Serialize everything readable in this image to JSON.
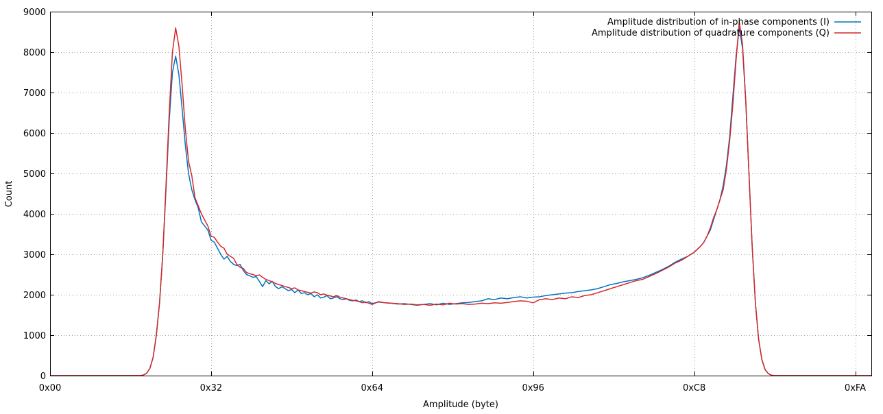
{
  "chart_data": {
    "type": "line",
    "title": "",
    "xlabel": "Amplitude (byte)",
    "ylabel": "Count",
    "xlim": [
      0,
      255
    ],
    "ylim": [
      0,
      9000
    ],
    "x_ticks": [
      {
        "value": 0,
        "label": "0x00"
      },
      {
        "value": 50,
        "label": "0x32"
      },
      {
        "value": 100,
        "label": "0x64"
      },
      {
        "value": 150,
        "label": "0x96"
      },
      {
        "value": 200,
        "label": "0xC8"
      },
      {
        "value": 250,
        "label": "0xFA"
      }
    ],
    "y_ticks": [
      0,
      1000,
      2000,
      3000,
      4000,
      5000,
      6000,
      7000,
      8000,
      9000
    ],
    "grid": true,
    "legend_position": "top-right",
    "series": [
      {
        "name": "Amplitude distribution of in-phase components (I)",
        "color": "#0072bd",
        "points": [
          [
            0,
            0
          ],
          [
            10,
            0
          ],
          [
            20,
            0
          ],
          [
            28,
            0
          ],
          [
            29,
            15
          ],
          [
            30,
            60
          ],
          [
            31,
            180
          ],
          [
            32,
            450
          ],
          [
            33,
            1000
          ],
          [
            34,
            1800
          ],
          [
            35,
            3000
          ],
          [
            36,
            4600
          ],
          [
            37,
            6300
          ],
          [
            38,
            7500
          ],
          [
            39,
            7900
          ],
          [
            40,
            7450
          ],
          [
            41,
            6600
          ],
          [
            42,
            5700
          ],
          [
            43,
            5000
          ],
          [
            44,
            4600
          ],
          [
            45,
            4350
          ],
          [
            46,
            4150
          ],
          [
            47,
            3800
          ],
          [
            48,
            3700
          ],
          [
            49,
            3600
          ],
          [
            50,
            3350
          ],
          [
            51,
            3300
          ],
          [
            52,
            3150
          ],
          [
            53,
            3000
          ],
          [
            54,
            2880
          ],
          [
            55,
            2950
          ],
          [
            56,
            2820
          ],
          [
            57,
            2750
          ],
          [
            58,
            2720
          ],
          [
            59,
            2750
          ],
          [
            60,
            2600
          ],
          [
            61,
            2500
          ],
          [
            62,
            2470
          ],
          [
            63,
            2430
          ],
          [
            64,
            2450
          ],
          [
            65,
            2330
          ],
          [
            66,
            2200
          ],
          [
            67,
            2350
          ],
          [
            68,
            2270
          ],
          [
            69,
            2330
          ],
          [
            70,
            2200
          ],
          [
            71,
            2150
          ],
          [
            72,
            2200
          ],
          [
            73,
            2150
          ],
          [
            74,
            2100
          ],
          [
            75,
            2130
          ],
          [
            76,
            2050
          ],
          [
            77,
            2120
          ],
          [
            78,
            2030
          ],
          [
            79,
            2050
          ],
          [
            80,
            2000
          ],
          [
            81,
            2030
          ],
          [
            82,
            1950
          ],
          [
            83,
            2000
          ],
          [
            84,
            1920
          ],
          [
            85,
            1940
          ],
          [
            86,
            1980
          ],
          [
            87,
            1900
          ],
          [
            88,
            1920
          ],
          [
            89,
            1950
          ],
          [
            90,
            1900
          ],
          [
            91,
            1880
          ],
          [
            92,
            1900
          ],
          [
            93,
            1860
          ],
          [
            94,
            1850
          ],
          [
            95,
            1870
          ],
          [
            96,
            1830
          ],
          [
            97,
            1850
          ],
          [
            98,
            1800
          ],
          [
            99,
            1830
          ],
          [
            100,
            1780
          ],
          [
            102,
            1820
          ],
          [
            104,
            1800
          ],
          [
            106,
            1790
          ],
          [
            108,
            1770
          ],
          [
            110,
            1780
          ],
          [
            112,
            1760
          ],
          [
            114,
            1740
          ],
          [
            116,
            1760
          ],
          [
            118,
            1780
          ],
          [
            120,
            1750
          ],
          [
            122,
            1790
          ],
          [
            124,
            1760
          ],
          [
            126,
            1780
          ],
          [
            128,
            1800
          ],
          [
            130,
            1810
          ],
          [
            132,
            1830
          ],
          [
            134,
            1850
          ],
          [
            136,
            1900
          ],
          [
            138,
            1880
          ],
          [
            140,
            1920
          ],
          [
            142,
            1900
          ],
          [
            144,
            1930
          ],
          [
            146,
            1950
          ],
          [
            148,
            1920
          ],
          [
            150,
            1940
          ],
          [
            152,
            1950
          ],
          [
            154,
            1980
          ],
          [
            156,
            2000
          ],
          [
            158,
            2020
          ],
          [
            160,
            2040
          ],
          [
            162,
            2050
          ],
          [
            164,
            2080
          ],
          [
            166,
            2100
          ],
          [
            168,
            2120
          ],
          [
            170,
            2150
          ],
          [
            172,
            2200
          ],
          [
            174,
            2250
          ],
          [
            176,
            2280
          ],
          [
            178,
            2320
          ],
          [
            180,
            2350
          ],
          [
            182,
            2380
          ],
          [
            184,
            2420
          ],
          [
            186,
            2480
          ],
          [
            188,
            2550
          ],
          [
            190,
            2620
          ],
          [
            192,
            2700
          ],
          [
            194,
            2800
          ],
          [
            196,
            2880
          ],
          [
            198,
            2950
          ],
          [
            200,
            3050
          ],
          [
            202,
            3200
          ],
          [
            203,
            3300
          ],
          [
            204,
            3450
          ],
          [
            205,
            3600
          ],
          [
            206,
            3850
          ],
          [
            207,
            4100
          ],
          [
            208,
            4350
          ],
          [
            209,
            4700
          ],
          [
            210,
            5200
          ],
          [
            211,
            5900
          ],
          [
            212,
            6900
          ],
          [
            213,
            7900
          ],
          [
            214,
            8600
          ],
          [
            215,
            8100
          ],
          [
            216,
            6800
          ],
          [
            217,
            5000
          ],
          [
            218,
            3200
          ],
          [
            219,
            1800
          ],
          [
            220,
            900
          ],
          [
            221,
            400
          ],
          [
            222,
            150
          ],
          [
            223,
            50
          ],
          [
            224,
            10
          ],
          [
            225,
            0
          ],
          [
            240,
            0
          ],
          [
            255,
            0
          ]
        ]
      },
      {
        "name": "Amplitude distribution of quadrature components (Q)",
        "color": "#d62728",
        "points": [
          [
            0,
            0
          ],
          [
            10,
            0
          ],
          [
            20,
            0
          ],
          [
            28,
            0
          ],
          [
            29,
            15
          ],
          [
            30,
            60
          ],
          [
            31,
            180
          ],
          [
            32,
            450
          ],
          [
            33,
            1000
          ],
          [
            34,
            1800
          ],
          [
            35,
            3000
          ],
          [
            36,
            4700
          ],
          [
            37,
            6500
          ],
          [
            38,
            8000
          ],
          [
            39,
            8600
          ],
          [
            40,
            8150
          ],
          [
            41,
            7200
          ],
          [
            42,
            6100
          ],
          [
            43,
            5300
          ],
          [
            44,
            4950
          ],
          [
            45,
            4400
          ],
          [
            46,
            4200
          ],
          [
            47,
            4000
          ],
          [
            48,
            3850
          ],
          [
            49,
            3700
          ],
          [
            50,
            3450
          ],
          [
            51,
            3420
          ],
          [
            52,
            3300
          ],
          [
            53,
            3200
          ],
          [
            54,
            3150
          ],
          [
            55,
            3000
          ],
          [
            56,
            2950
          ],
          [
            57,
            2900
          ],
          [
            58,
            2750
          ],
          [
            59,
            2680
          ],
          [
            60,
            2650
          ],
          [
            61,
            2550
          ],
          [
            62,
            2520
          ],
          [
            63,
            2500
          ],
          [
            64,
            2470
          ],
          [
            65,
            2490
          ],
          [
            66,
            2430
          ],
          [
            67,
            2380
          ],
          [
            68,
            2350
          ],
          [
            69,
            2320
          ],
          [
            70,
            2280
          ],
          [
            71,
            2250
          ],
          [
            72,
            2230
          ],
          [
            73,
            2200
          ],
          [
            74,
            2180
          ],
          [
            75,
            2150
          ],
          [
            76,
            2170
          ],
          [
            77,
            2120
          ],
          [
            78,
            2100
          ],
          [
            79,
            2080
          ],
          [
            80,
            2060
          ],
          [
            81,
            2040
          ],
          [
            82,
            2070
          ],
          [
            83,
            2050
          ],
          [
            84,
            2000
          ],
          [
            85,
            2020
          ],
          [
            86,
            1990
          ],
          [
            87,
            1970
          ],
          [
            88,
            1950
          ],
          [
            89,
            1980
          ],
          [
            90,
            1940
          ],
          [
            91,
            1920
          ],
          [
            92,
            1900
          ],
          [
            93,
            1880
          ],
          [
            94,
            1860
          ],
          [
            95,
            1850
          ],
          [
            96,
            1830
          ],
          [
            97,
            1800
          ],
          [
            98,
            1820
          ],
          [
            99,
            1790
          ],
          [
            100,
            1760
          ],
          [
            102,
            1830
          ],
          [
            104,
            1800
          ],
          [
            106,
            1790
          ],
          [
            108,
            1780
          ],
          [
            110,
            1760
          ],
          [
            112,
            1770
          ],
          [
            114,
            1750
          ],
          [
            116,
            1760
          ],
          [
            118,
            1740
          ],
          [
            120,
            1770
          ],
          [
            122,
            1750
          ],
          [
            124,
            1790
          ],
          [
            126,
            1770
          ],
          [
            128,
            1780
          ],
          [
            130,
            1760
          ],
          [
            132,
            1770
          ],
          [
            134,
            1790
          ],
          [
            136,
            1780
          ],
          [
            138,
            1800
          ],
          [
            140,
            1790
          ],
          [
            142,
            1810
          ],
          [
            144,
            1830
          ],
          [
            146,
            1850
          ],
          [
            148,
            1840
          ],
          [
            150,
            1800
          ],
          [
            152,
            1880
          ],
          [
            154,
            1900
          ],
          [
            156,
            1880
          ],
          [
            158,
            1920
          ],
          [
            160,
            1900
          ],
          [
            162,
            1950
          ],
          [
            164,
            1930
          ],
          [
            166,
            1980
          ],
          [
            168,
            2000
          ],
          [
            170,
            2050
          ],
          [
            172,
            2100
          ],
          [
            174,
            2150
          ],
          [
            176,
            2200
          ],
          [
            178,
            2250
          ],
          [
            180,
            2300
          ],
          [
            182,
            2350
          ],
          [
            184,
            2380
          ],
          [
            186,
            2450
          ],
          [
            188,
            2520
          ],
          [
            190,
            2600
          ],
          [
            192,
            2680
          ],
          [
            194,
            2780
          ],
          [
            196,
            2850
          ],
          [
            198,
            2950
          ],
          [
            200,
            3050
          ],
          [
            202,
            3200
          ],
          [
            203,
            3300
          ],
          [
            204,
            3450
          ],
          [
            205,
            3650
          ],
          [
            206,
            3900
          ],
          [
            207,
            4100
          ],
          [
            208,
            4350
          ],
          [
            209,
            4600
          ],
          [
            210,
            5100
          ],
          [
            211,
            5800
          ],
          [
            212,
            6700
          ],
          [
            213,
            7800
          ],
          [
            214,
            8750
          ],
          [
            215,
            8200
          ],
          [
            216,
            6800
          ],
          [
            217,
            5000
          ],
          [
            218,
            3200
          ],
          [
            219,
            1800
          ],
          [
            220,
            900
          ],
          [
            221,
            400
          ],
          [
            222,
            150
          ],
          [
            223,
            50
          ],
          [
            224,
            10
          ],
          [
            225,
            0
          ],
          [
            240,
            0
          ],
          [
            255,
            0
          ]
        ]
      }
    ]
  }
}
